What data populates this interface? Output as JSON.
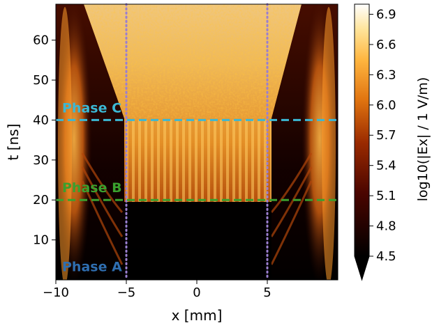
{
  "chart_data": {
    "type": "heatmap",
    "title": "",
    "xlabel": "x [mm]",
    "ylabel": "t [ns]",
    "xlim": [
      -10,
      10
    ],
    "ylim": [
      0,
      69
    ],
    "x_ticks": [
      -10,
      -5,
      0,
      5
    ],
    "x_tick_labels": [
      "−10",
      "−5",
      "0",
      "5"
    ],
    "y_ticks": [
      10,
      20,
      30,
      40,
      50,
      60
    ],
    "y_tick_labels": [
      "10",
      "20",
      "30",
      "40",
      "50",
      "60"
    ],
    "grid": false,
    "colorbar": {
      "label": "log10(|Ex| / 1 V/m)",
      "range": [
        4.5,
        7.0
      ],
      "extend": "min",
      "ticks": [
        4.5,
        4.8,
        5.1,
        5.4,
        5.7,
        6.0,
        6.3,
        6.6,
        6.9
      ],
      "tick_labels": [
        "4.5",
        "4.8",
        "5.1",
        "5.4",
        "5.7",
        "6.0",
        "6.3",
        "6.6",
        "6.9"
      ],
      "colormap": "afmhot"
    },
    "annotations": {
      "phase_lines": [
        {
          "label": "Phase C",
          "t": 40,
          "color": "#3bb8d4"
        },
        {
          "label": "Phase B",
          "t": 20,
          "color": "#3aa02e"
        },
        {
          "label": "Phase A",
          "t": 2.5,
          "color": "#2f6eb0"
        }
      ],
      "vertical_lines": [
        {
          "x": -5,
          "color": "#9b7fd0"
        },
        {
          "x": 5,
          "color": "#9b7fd0"
        }
      ]
    }
  }
}
